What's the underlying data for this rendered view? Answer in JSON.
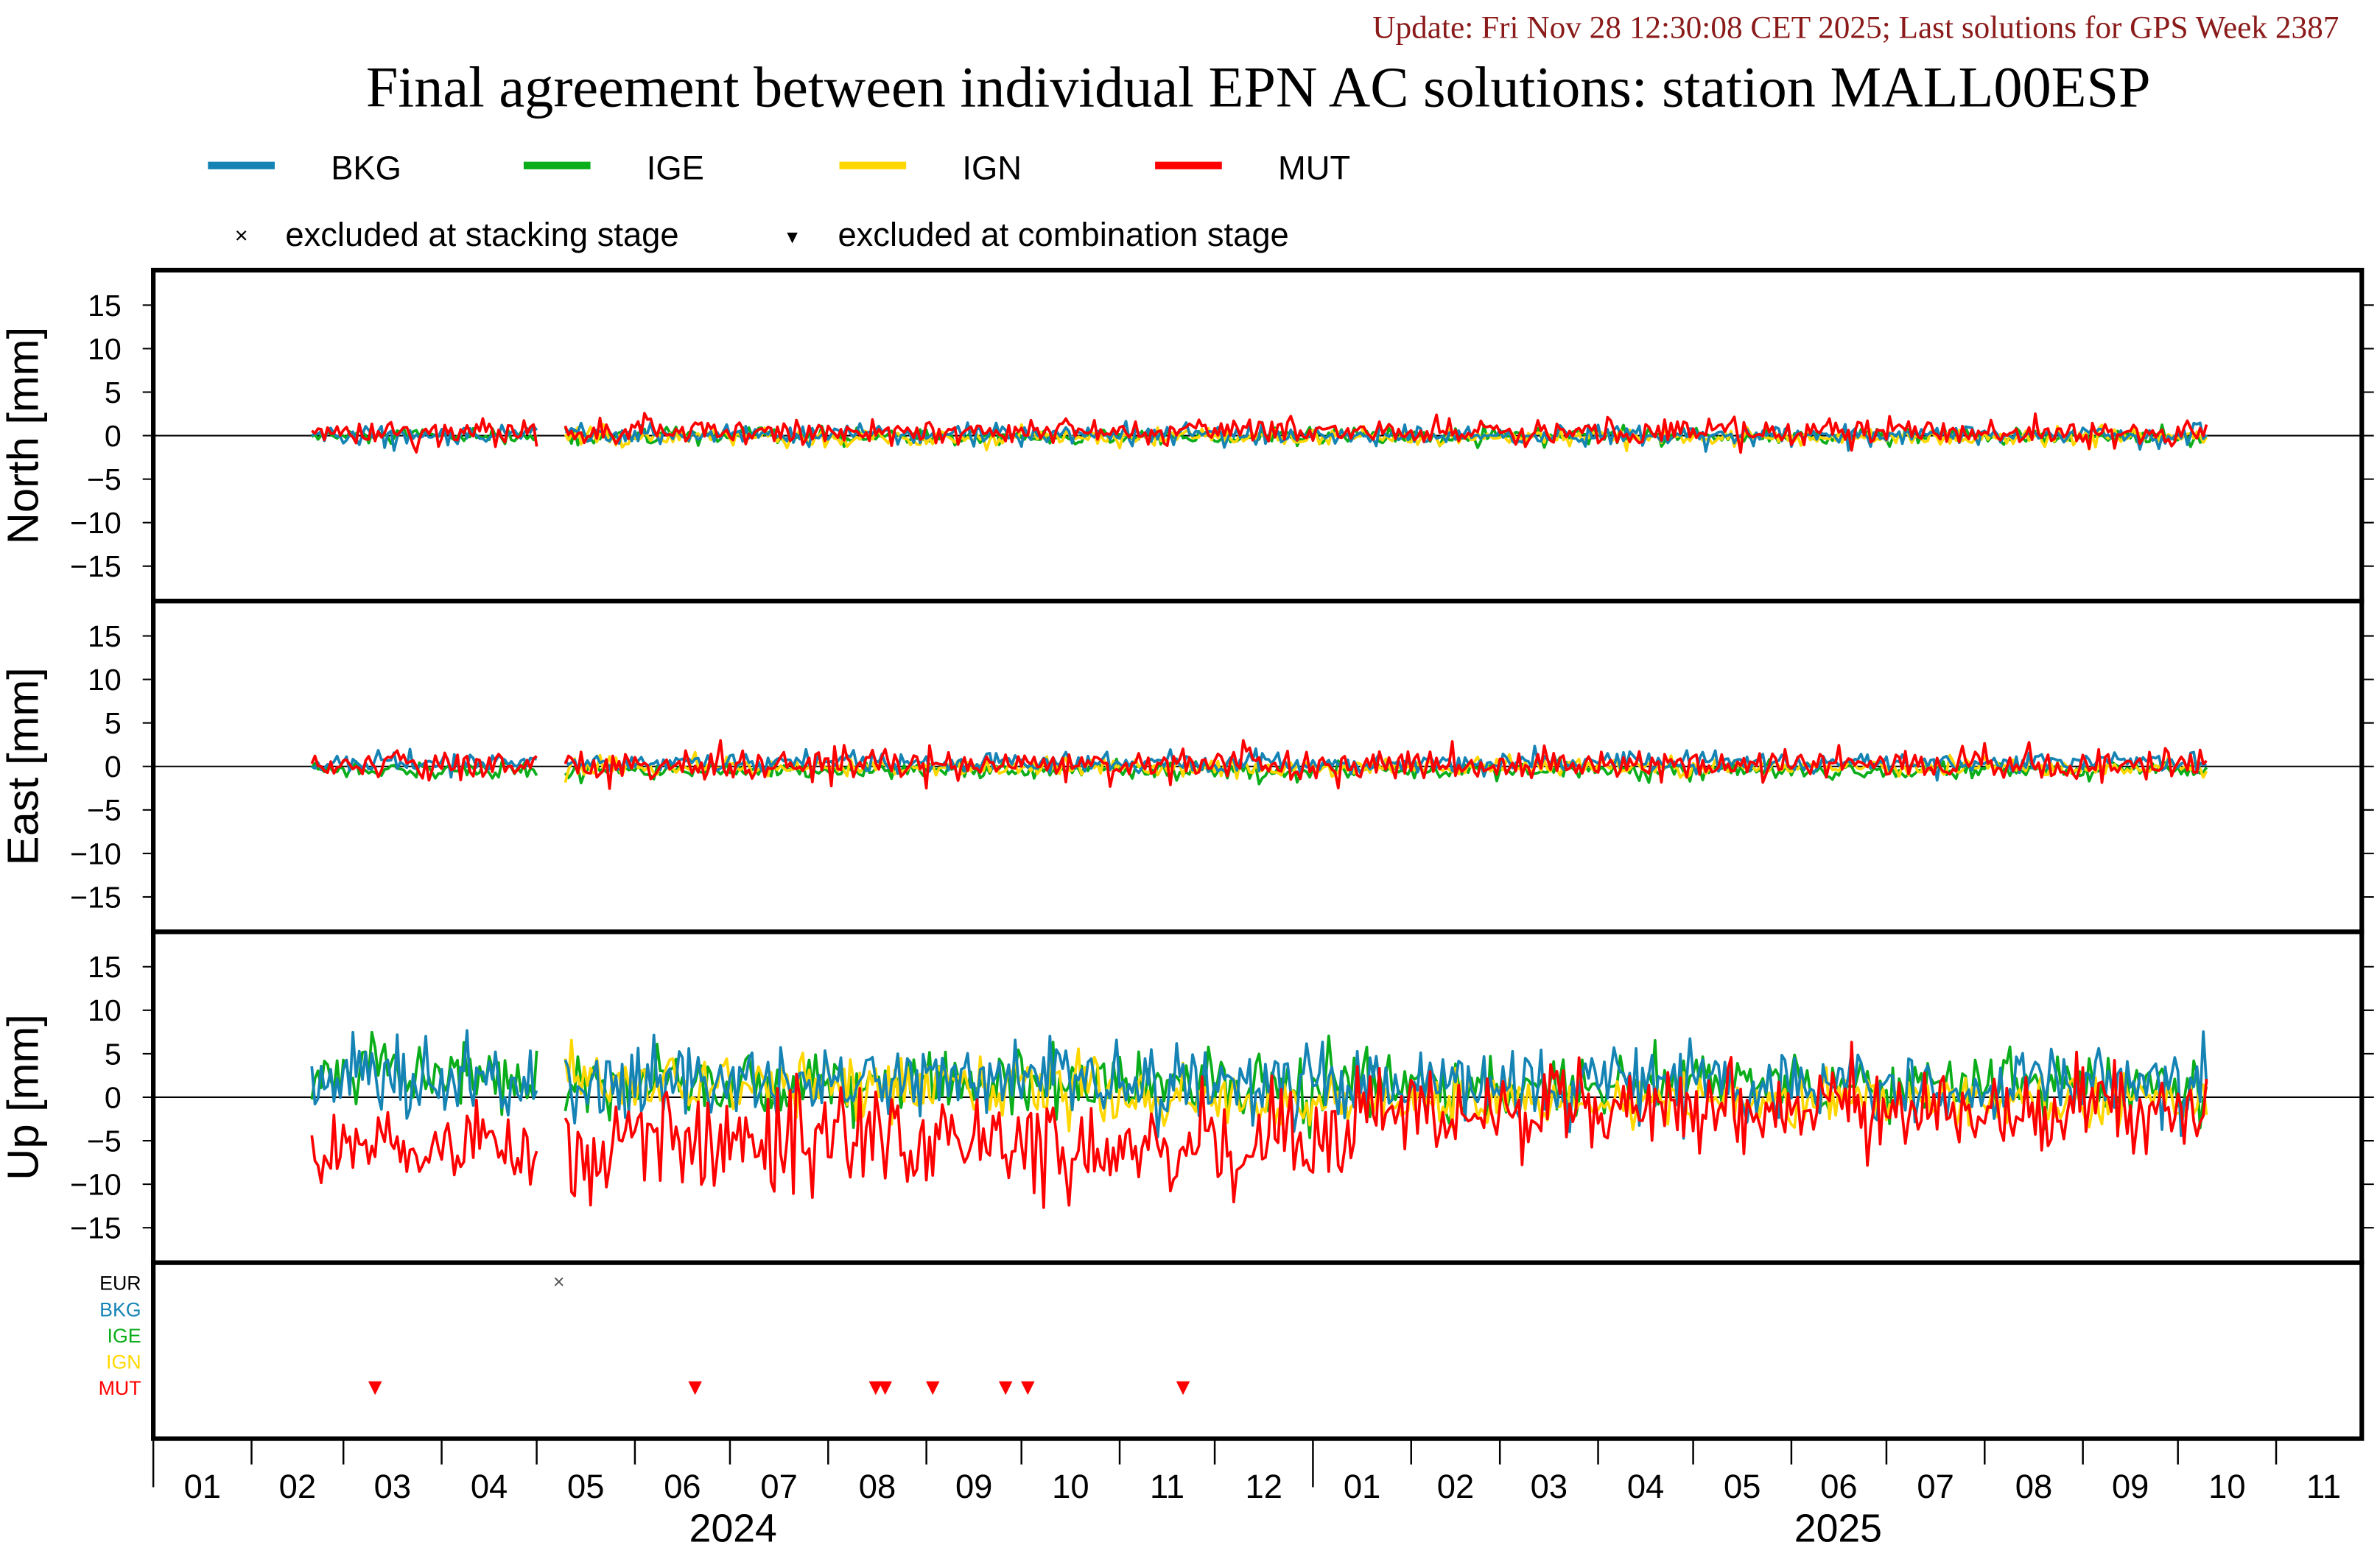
{
  "header": {
    "update_text": "Update: Fri Nov 28 12:30:08 CET 2025; Last solutions for GPS Week 2387",
    "title": "Final agreement between individual EPN AC solutions: station MALL00ESP"
  },
  "legend": {
    "series": [
      {
        "label": "BKG",
        "color": "#1584b4"
      },
      {
        "label": "IGE",
        "color": "#0aad1a"
      },
      {
        "label": "IGN",
        "color": "#ffd700"
      },
      {
        "label": "MUT",
        "color": "#ff0000"
      }
    ],
    "stacking_symbol": "×",
    "stacking_label": "excluded at stacking stage",
    "combination_symbol": "▼",
    "combination_label": "excluded at combination stage"
  },
  "chart_data": {
    "type": "line",
    "title": "Final agreement between individual EPN AC solutions: station MALL00ESP",
    "x_axis": {
      "start": "2024-01-01",
      "end": "2025-11-28",
      "month_labels": [
        "01",
        "02",
        "03",
        "04",
        "05",
        "06",
        "07",
        "08",
        "09",
        "10",
        "11",
        "12",
        "01",
        "02",
        "03",
        "04",
        "05",
        "06",
        "07",
        "08",
        "09",
        "10",
        "11"
      ],
      "year_labels": [
        "2024",
        "2025"
      ]
    },
    "y_ticks": [
      15,
      10,
      5,
      0,
      -5,
      -10,
      -15
    ],
    "ylim": [
      -19,
      19
    ],
    "panels": [
      {
        "id": "north",
        "ylabel": "North [mm]",
        "series_model": {
          "BKG": [
            [
              50,
              649,
              0.1,
              0.6
            ]
          ],
          "IGE": [
            [
              50,
              649,
              -0.1,
              0.5
            ]
          ],
          "IGN": [
            [
              130,
              649,
              -0.2,
              0.5
            ]
          ],
          "MUT": [
            [
              50,
              649,
              0.4,
              0.8
            ]
          ]
        }
      },
      {
        "id": "east",
        "ylabel": "East [mm]",
        "series_model": {
          "BKG": [
            [
              50,
              649,
              0.4,
              0.6
            ]
          ],
          "IGE": [
            [
              50,
              649,
              -0.4,
              0.5
            ]
          ],
          "IGN": [
            [
              130,
              649,
              -0.1,
              0.5
            ]
          ],
          "MUT": [
            [
              50,
              649,
              0.2,
              0.9
            ]
          ]
        }
      },
      {
        "id": "up",
        "ylabel": "Up [mm]",
        "series_model": {
          "BKG": [
            [
              50,
              300,
              2.0,
              2.2
            ],
            [
              300,
              649,
              1.5,
              2.2
            ]
          ],
          "IGE": [
            [
              50,
              130,
              2.5,
              2.0
            ],
            [
              130,
              649,
              1.5,
              1.8
            ]
          ],
          "IGN": [
            [
              130,
              300,
              1.5,
              1.8
            ],
            [
              300,
              649,
              -0.5,
              1.5
            ]
          ],
          "MUT": [
            [
              50,
              130,
              -6.0,
              2.2
            ],
            [
              130,
              380,
              -5.0,
              3.0
            ],
            [
              380,
              649,
              -1.5,
              2.5
            ]
          ]
        }
      }
    ],
    "series_model_format": "[start_day, end_day, mean_mm, std_mm], days counted from 2024-01-01",
    "data_gap_days": [
      122,
      130
    ],
    "exclusions": {
      "rows": [
        {
          "label": "EUR",
          "color": "#000000"
        },
        {
          "label": "BKG",
          "color": "#1584b4"
        },
        {
          "label": "IGE",
          "color": "#0aad1a"
        },
        {
          "label": "IGN",
          "color": "#ffd700"
        },
        {
          "label": "MUT",
          "color": "#ff0000"
        }
      ],
      "stacking": [
        {
          "row": "EUR",
          "date": "2024-05-08"
        }
      ],
      "combination": [
        {
          "row": "MUT",
          "date": "2024-03-11"
        },
        {
          "row": "MUT",
          "date": "2024-06-20"
        },
        {
          "row": "MUT",
          "date": "2024-08-16"
        },
        {
          "row": "MUT",
          "date": "2024-08-19"
        },
        {
          "row": "MUT",
          "date": "2024-09-03"
        },
        {
          "row": "MUT",
          "date": "2024-09-26"
        },
        {
          "row": "MUT",
          "date": "2024-10-03"
        },
        {
          "row": "MUT",
          "date": "2024-11-21"
        }
      ]
    }
  }
}
